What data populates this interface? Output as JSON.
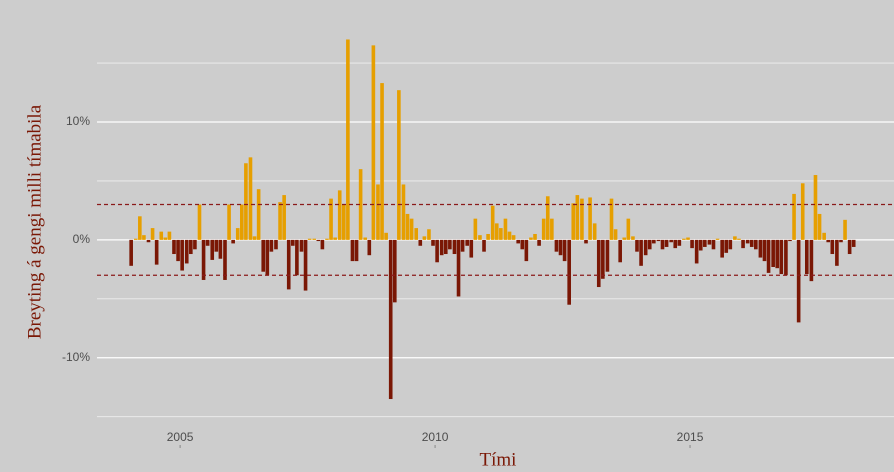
{
  "chart_data": {
    "type": "bar",
    "x_label": "Tími",
    "y_label": "Breyting á gengi milli tímabila",
    "positive_color": "#e69f00",
    "negative_color": "#7a1705",
    "xlim": [
      2003.37,
      2019.0
    ],
    "ylim": [
      -17.4,
      19.5
    ],
    "xticks": [
      2005,
      2010,
      2015
    ],
    "yticks": [
      {
        "value": -10,
        "label": "-10%"
      },
      {
        "value": 0,
        "label": "0%"
      },
      {
        "value": 10,
        "label": "10%"
      }
    ],
    "minor_yticks": [
      -15,
      -5,
      5,
      15
    ],
    "grid": true,
    "reference_lines": [
      3,
      -3
    ],
    "reference_color": "#8b1a1a",
    "x": [
      2004.04,
      2004.13,
      2004.21,
      2004.29,
      2004.38,
      2004.46,
      2004.54,
      2004.63,
      2004.71,
      2004.79,
      2004.88,
      2004.96,
      2005.04,
      2005.13,
      2005.21,
      2005.29,
      2005.38,
      2005.46,
      2005.54,
      2005.63,
      2005.71,
      2005.79,
      2005.88,
      2005.96,
      2006.04,
      2006.13,
      2006.21,
      2006.29,
      2006.38,
      2006.46,
      2006.54,
      2006.63,
      2006.71,
      2006.79,
      2006.88,
      2006.96,
      2007.04,
      2007.13,
      2007.21,
      2007.29,
      2007.38,
      2007.46,
      2007.54,
      2007.63,
      2007.71,
      2007.79,
      2007.88,
      2007.96,
      2008.04,
      2008.13,
      2008.21,
      2008.29,
      2008.38,
      2008.46,
      2008.54,
      2008.63,
      2008.71,
      2008.79,
      2008.88,
      2008.96,
      2009.04,
      2009.13,
      2009.21,
      2009.29,
      2009.38,
      2009.46,
      2009.54,
      2009.63,
      2009.71,
      2009.79,
      2009.88,
      2009.96,
      2010.04,
      2010.13,
      2010.21,
      2010.29,
      2010.38,
      2010.46,
      2010.54,
      2010.63,
      2010.71,
      2010.79,
      2010.88,
      2010.96,
      2011.04,
      2011.13,
      2011.21,
      2011.29,
      2011.38,
      2011.46,
      2011.54,
      2011.63,
      2011.71,
      2011.79,
      2011.88,
      2011.96,
      2012.04,
      2012.13,
      2012.21,
      2012.29,
      2012.38,
      2012.46,
      2012.54,
      2012.63,
      2012.71,
      2012.79,
      2012.88,
      2012.96,
      2013.04,
      2013.13,
      2013.21,
      2013.29,
      2013.38,
      2013.46,
      2013.54,
      2013.63,
      2013.71,
      2013.79,
      2013.88,
      2013.96,
      2014.04,
      2014.13,
      2014.21,
      2014.29,
      2014.38,
      2014.46,
      2014.54,
      2014.63,
      2014.71,
      2014.79,
      2014.88,
      2014.96,
      2015.04,
      2015.13,
      2015.21,
      2015.29,
      2015.38,
      2015.46,
      2015.54,
      2015.63,
      2015.71,
      2015.79,
      2015.88,
      2015.96,
      2016.04,
      2016.13,
      2016.21,
      2016.29,
      2016.38,
      2016.46,
      2016.54,
      2016.63,
      2016.71,
      2016.79,
      2016.88,
      2016.96,
      2017.04,
      2017.13,
      2017.21,
      2017.29,
      2017.38,
      2017.46,
      2017.54,
      2017.63,
      2017.71,
      2017.79,
      2017.88,
      2017.96,
      2018.04,
      2018.13,
      2018.21
    ],
    "values": [
      -2.2,
      0.1,
      2.0,
      0.4,
      -0.2,
      1.0,
      -2.1,
      0.7,
      0.2,
      0.7,
      -1.2,
      -1.8,
      -2.6,
      -2.0,
      -1.2,
      -0.8,
      3.0,
      -3.4,
      -0.5,
      -1.7,
      -1.0,
      -1.6,
      -3.4,
      3.0,
      -0.3,
      1.0,
      3.0,
      6.5,
      7.0,
      0.3,
      4.3,
      -2.7,
      -3.0,
      -1.0,
      -0.8,
      3.2,
      3.8,
      -4.2,
      -0.5,
      -3.0,
      -1.0,
      -4.3,
      0.1,
      0.1,
      -0.1,
      -0.8,
      0.1,
      3.5,
      0.2,
      4.2,
      3.0,
      17.0,
      -1.8,
      -1.8,
      6.0,
      0.2,
      -1.3,
      16.5,
      4.7,
      13.3,
      0.6,
      -13.5,
      -5.3,
      12.7,
      4.7,
      2.2,
      1.8,
      1.0,
      -0.5,
      0.3,
      0.9,
      -0.5,
      -1.9,
      -1.3,
      -1.2,
      -0.8,
      -1.2,
      -4.8,
      -1.0,
      -0.5,
      -1.5,
      1.8,
      0.4,
      -1.0,
      0.5,
      2.9,
      1.4,
      1.0,
      1.8,
      0.7,
      0.4,
      -0.3,
      -0.8,
      -1.8,
      0.2,
      0.5,
      -0.5,
      1.8,
      3.7,
      1.8,
      -1.0,
      -1.3,
      -1.8,
      -5.5,
      3.1,
      3.8,
      3.5,
      -0.3,
      3.6,
      1.4,
      -4.0,
      -3.3,
      -2.7,
      3.5,
      0.9,
      -1.9,
      0.2,
      1.8,
      0.3,
      -1.0,
      -2.2,
      -1.3,
      -0.8,
      -0.3,
      -0.1,
      -0.8,
      -0.6,
      -0.2,
      -0.7,
      -0.5,
      0.1,
      0.2,
      -0.7,
      -2.0,
      -0.9,
      -0.6,
      -0.4,
      -0.8,
      0.1,
      -1.5,
      -1.1,
      -0.8,
      0.3,
      0.1,
      -0.7,
      -0.3,
      -0.6,
      -0.8,
      -1.5,
      -1.8,
      -2.8,
      -2.3,
      -2.4,
      -2.9,
      -3.0,
      -0.1,
      3.9,
      -7.0,
      4.8,
      -2.9,
      -3.5,
      5.5,
      2.2,
      0.6,
      -0.2,
      -1.2,
      -2.2,
      -0.2,
      1.7,
      -1.2,
      -0.6
    ]
  }
}
